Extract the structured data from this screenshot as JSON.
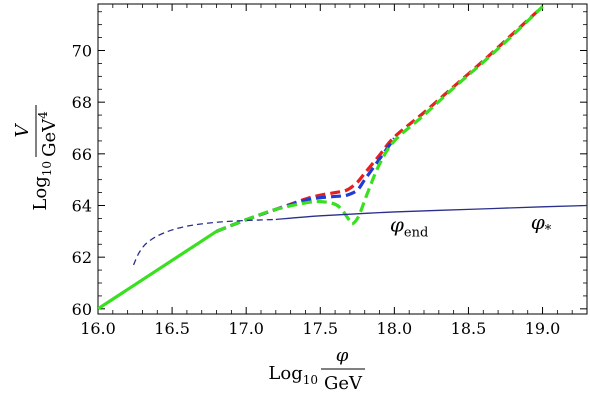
{
  "chart_data": {
    "type": "line",
    "xlabel": {
      "prefix": "Log",
      "sub": "10",
      "num": "φ",
      "den": "GeV"
    },
    "ylabel": {
      "prefix": "Log",
      "sub": "10",
      "num": "V",
      "den": "GeV",
      "den_sup": "4"
    },
    "xlim": [
      16.0,
      19.3
    ],
    "ylim": [
      59.8,
      71.8
    ],
    "xticks": [
      "16.0",
      "16.5",
      "17.0",
      "17.5",
      "18.0",
      "18.5",
      "19.0"
    ],
    "yticks": [
      "60",
      "62",
      "64",
      "66",
      "68",
      "70"
    ],
    "annotations": [
      {
        "text": "φ",
        "sub": "end",
        "x": 17.97,
        "y": 63.0
      },
      {
        "text": "φ",
        "sub": "*",
        "x": 18.92,
        "y": 63.1
      }
    ],
    "series": [
      {
        "color": "#e6201d",
        "dash": "dashed",
        "width": 3.2,
        "x": [
          16.8,
          17.0,
          17.2,
          17.4,
          17.5,
          17.6,
          17.68,
          17.75,
          17.8,
          17.9,
          18.0,
          18.2,
          18.4,
          18.6,
          18.8,
          19.0
        ],
        "y": [
          63.0,
          63.45,
          63.85,
          64.25,
          64.4,
          64.5,
          64.6,
          64.9,
          65.25,
          65.95,
          66.65,
          67.6,
          68.6,
          69.6,
          70.65,
          71.7
        ]
      },
      {
        "color": "#1f3cd6",
        "dash": "dashed",
        "width": 3.2,
        "x": [
          16.8,
          17.0,
          17.2,
          17.4,
          17.5,
          17.6,
          17.68,
          17.75,
          17.8,
          17.9,
          18.0
        ],
        "y": [
          63.0,
          63.45,
          63.85,
          64.2,
          64.3,
          64.35,
          64.4,
          64.6,
          65.0,
          65.8,
          66.6
        ]
      },
      {
        "color": "#39e020",
        "dash": "solid",
        "width": 3.2,
        "x": [
          16.0,
          16.2,
          16.4,
          16.6,
          16.8
        ],
        "y": [
          60.0,
          60.75,
          61.5,
          62.25,
          63.0
        ]
      },
      {
        "color": "#39e020",
        "dash": "dashed",
        "width": 3.2,
        "x": [
          16.8,
          17.0,
          17.2,
          17.4,
          17.5,
          17.6,
          17.65,
          17.7,
          17.72,
          17.76,
          17.82,
          17.9,
          18.0,
          18.2,
          18.4,
          18.6,
          18.8,
          19.0
        ],
        "y": [
          63.0,
          63.45,
          63.85,
          64.1,
          64.15,
          64.05,
          63.8,
          63.4,
          63.3,
          63.6,
          64.5,
          65.6,
          66.5,
          67.5,
          68.55,
          69.55,
          70.6,
          71.7
        ]
      },
      {
        "color": "#2a2f8c",
        "dash": "dashed",
        "width": 1.3,
        "x": [
          16.24,
          16.28,
          16.34,
          16.45,
          16.6,
          16.8,
          17.0,
          17.2
        ],
        "y": [
          61.7,
          62.2,
          62.6,
          62.95,
          63.2,
          63.35,
          63.42,
          63.46
        ]
      },
      {
        "color": "#2a2f8c",
        "dash": "solid",
        "width": 1.3,
        "x": [
          17.2,
          17.5,
          18.0,
          18.5,
          19.0,
          19.3
        ],
        "y": [
          63.46,
          63.6,
          63.75,
          63.85,
          63.95,
          64.0
        ]
      }
    ]
  }
}
